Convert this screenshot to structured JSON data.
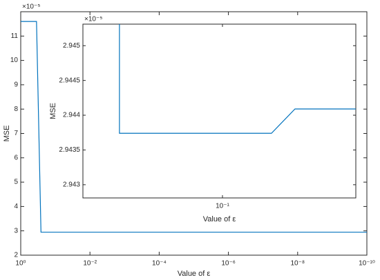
{
  "chart_data": [
    {
      "type": "line",
      "xlabel": "Value of ε",
      "ylabel": "MSE",
      "y_exponent": "×10⁻⁵",
      "xscale": "log",
      "xlim": [
        1,
        1e-10
      ],
      "xticks": [
        {
          "value": 1,
          "label": "10⁰"
        },
        {
          "value": 0.01,
          "label": "10⁻²"
        },
        {
          "value": 0.0001,
          "label": "10⁻⁴"
        },
        {
          "value": 1e-06,
          "label": "10⁻⁶"
        },
        {
          "value": 1e-08,
          "label": "10⁻⁸"
        },
        {
          "value": 1e-10,
          "label": "10⁻¹⁰"
        }
      ],
      "ylim": [
        2,
        12
      ],
      "yticks": [
        2,
        3,
        4,
        5,
        6,
        7,
        8,
        9,
        10,
        11
      ],
      "series": [
        {
          "color": "#0072bd",
          "x": [
            1,
            0.35,
            0.26,
            1e-10
          ],
          "values": [
            11.6,
            11.6,
            2.9437,
            2.9437
          ]
        }
      ]
    },
    {
      "type": "line",
      "xlabel": "Value of ε",
      "ylabel": "MSE",
      "y_exponent": "×10⁻⁵",
      "xscale": "log",
      "xlim": [
        0.3,
        0.035
      ],
      "xticks": [
        {
          "value": 0.1,
          "label": "10⁻¹"
        }
      ],
      "ylim": [
        2.94281,
        2.94531
      ],
      "yticks": [
        2.943,
        2.9435,
        2.944,
        2.9445,
        2.945
      ],
      "series": [
        {
          "color": "#0072bd",
          "x": [
            0.225,
            0.225,
            0.068,
            0.0565,
            0.035
          ],
          "values": [
            2.94531,
            2.94374,
            2.94374,
            2.94409,
            2.94409
          ]
        }
      ]
    }
  ]
}
